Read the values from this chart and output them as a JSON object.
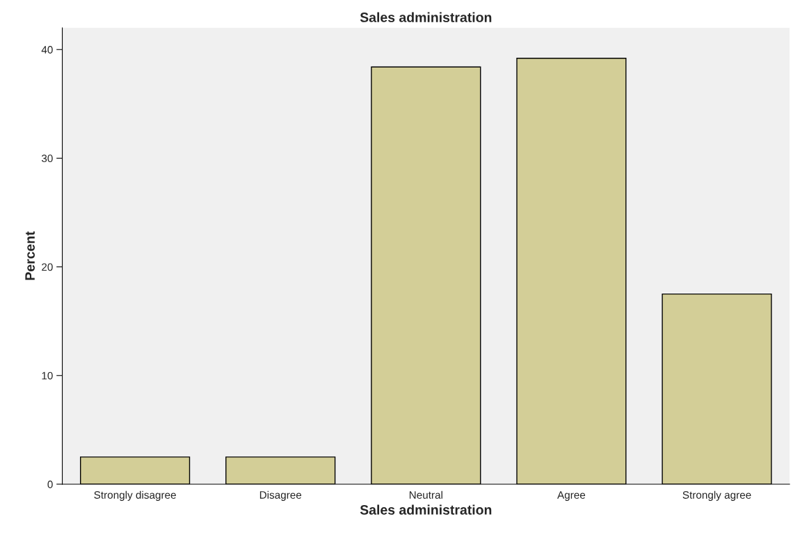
{
  "chart_data": {
    "type": "bar",
    "title": "Sales administration",
    "xlabel": "Sales administration",
    "ylabel": "Percent",
    "categories": [
      "Strongly disagree",
      "Disagree",
      "Neutral",
      "Agree",
      "Strongly agree"
    ],
    "values": [
      2.5,
      2.5,
      38.4,
      39.2,
      17.5
    ],
    "color": "#d3ce97",
    "ylim": [
      0,
      42
    ],
    "yticks": [
      0,
      10,
      20,
      30,
      40
    ],
    "grid": false,
    "legend": false
  }
}
